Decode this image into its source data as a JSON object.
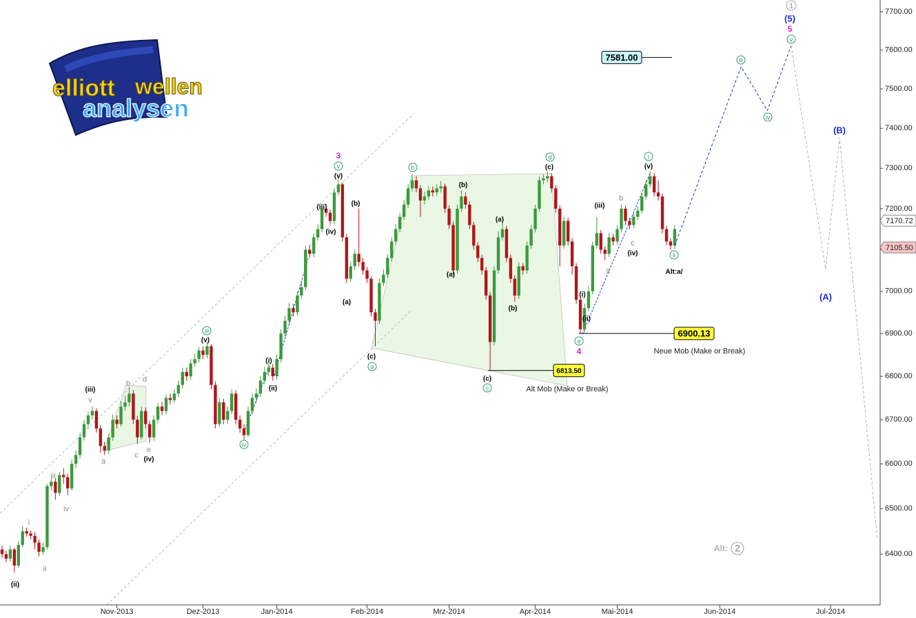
{
  "logo": {
    "line1": "elliott",
    "line2": "wellen",
    "line3": "analysen"
  },
  "chart_data": {
    "type": "candlestick",
    "log_scale": true,
    "grid": false,
    "up_color": "#3c9a3c",
    "down_color": "#b0161a",
    "xlim": [
      -0.5,
      214.1
    ],
    "ylim": [
      6290,
      7731
    ],
    "xticks": [
      {
        "value": 28,
        "label": "Nov-2013"
      },
      {
        "value": 49,
        "label": "Dez-2013"
      },
      {
        "value": 67,
        "label": "Jan-2014"
      },
      {
        "value": 89,
        "label": "Feb-2014"
      },
      {
        "value": 109,
        "label": "Mrz-2014"
      },
      {
        "value": 130,
        "label": "Apr-2014"
      },
      {
        "value": 150,
        "label": "Mai-2014"
      },
      {
        "value": 175,
        "label": "Jun-2014"
      },
      {
        "value": 202,
        "label": "Jul-2014"
      }
    ],
    "yticks": [
      {
        "value": 6400,
        "label": "6400.00"
      },
      {
        "value": 6500,
        "label": "6500.00"
      },
      {
        "value": 6600,
        "label": "6600.00"
      },
      {
        "value": 6700,
        "label": "6700.00"
      },
      {
        "value": 6800,
        "label": "6800.00"
      },
      {
        "value": 6900,
        "label": "6900.00"
      },
      {
        "value": 7000,
        "label": "7000.00"
      },
      {
        "value": 7100,
        "label": "7100.00"
      },
      {
        "value": 7200,
        "label": "7200.00"
      },
      {
        "value": 7300,
        "label": "7300.00"
      },
      {
        "value": 7400,
        "label": "7400.00"
      },
      {
        "value": 7500,
        "label": "7500.00"
      },
      {
        "value": 7600,
        "label": "7600.00"
      },
      {
        "value": 7700,
        "label": "7700.00"
      }
    ],
    "x": [
      0,
      1,
      2,
      3,
      4,
      5,
      6,
      7,
      8,
      9,
      10,
      11,
      12,
      13,
      14,
      15,
      16,
      17,
      18,
      19,
      20,
      21,
      22,
      23,
      24,
      25,
      26,
      27,
      28,
      29,
      30,
      31,
      32,
      33,
      34,
      35,
      36,
      37,
      38,
      39,
      40,
      41,
      42,
      43,
      44,
      45,
      46,
      47,
      48,
      49,
      50,
      51,
      52,
      53,
      54,
      55,
      56,
      57,
      58,
      59,
      60,
      61,
      62,
      63,
      64,
      65,
      66,
      67,
      68,
      69,
      70,
      71,
      72,
      73,
      74,
      75,
      76,
      77,
      78,
      79,
      80,
      81,
      82,
      83,
      84,
      85,
      86,
      87,
      88,
      89,
      90,
      91,
      92,
      93,
      94,
      95,
      96,
      97,
      98,
      99,
      100,
      101,
      102,
      103,
      104,
      105,
      106,
      107,
      108,
      109,
      110,
      111,
      112,
      113,
      114,
      115,
      116,
      117,
      118,
      119,
      120,
      121,
      122,
      123,
      124,
      125,
      126,
      127,
      128,
      129,
      130,
      131,
      132,
      133,
      134,
      135,
      136,
      137,
      138,
      139,
      140,
      141,
      142,
      143,
      144,
      145,
      146,
      147,
      148,
      149,
      150,
      151,
      152,
      153,
      154,
      155,
      156,
      157,
      158,
      159,
      160,
      161,
      162,
      163,
      164
    ],
    "ohlc": [
      [
        6410,
        6418,
        6392,
        6400
      ],
      [
        6400,
        6408,
        6382,
        6390
      ],
      [
        6390,
        6418,
        6384,
        6410
      ],
      [
        6410,
        6414,
        6360,
        6375
      ],
      [
        6375,
        6428,
        6370,
        6420
      ],
      [
        6420,
        6462,
        6415,
        6450
      ],
      [
        6450,
        6458,
        6438,
        6445
      ],
      [
        6445,
        6452,
        6432,
        6440
      ],
      [
        6440,
        6448,
        6410,
        6425
      ],
      [
        6425,
        6432,
        6395,
        6405
      ],
      [
        6405,
        6425,
        6398,
        6415
      ],
      [
        6415,
        6555,
        6410,
        6550
      ],
      [
        6550,
        6572,
        6540,
        6560
      ],
      [
        6560,
        6568,
        6520,
        6535
      ],
      [
        6535,
        6582,
        6528,
        6575
      ],
      [
        6575,
        6590,
        6555,
        6570
      ],
      [
        6570,
        6578,
        6530,
        6545
      ],
      [
        6545,
        6610,
        6540,
        6600
      ],
      [
        6600,
        6630,
        6590,
        6620
      ],
      [
        6620,
        6670,
        6612,
        6660
      ],
      [
        6660,
        6700,
        6652,
        6690
      ],
      [
        6690,
        6718,
        6680,
        6710
      ],
      [
        6710,
        6730,
        6700,
        6720
      ],
      [
        6720,
        6726,
        6670,
        6680
      ],
      [
        6680,
        6688,
        6625,
        6640
      ],
      [
        6640,
        6650,
        6620,
        6630
      ],
      [
        6630,
        6668,
        6622,
        6660
      ],
      [
        6660,
        6712,
        6652,
        6700
      ],
      [
        6700,
        6710,
        6680,
        6690
      ],
      [
        6690,
        6742,
        6684,
        6730
      ],
      [
        6730,
        6755,
        6720,
        6740
      ],
      [
        6740,
        6775,
        6730,
        6760
      ],
      [
        6760,
        6768,
        6690,
        6700
      ],
      [
        6700,
        6708,
        6645,
        6660
      ],
      [
        6660,
        6730,
        6655,
        6720
      ],
      [
        6720,
        6728,
        6680,
        6690
      ],
      [
        6690,
        6698,
        6648,
        6660
      ],
      [
        6660,
        6710,
        6652,
        6700
      ],
      [
        6700,
        6738,
        6692,
        6730
      ],
      [
        6730,
        6740,
        6710,
        6720
      ],
      [
        6720,
        6758,
        6712,
        6750
      ],
      [
        6750,
        6760,
        6735,
        6745
      ],
      [
        6745,
        6770,
        6738,
        6760
      ],
      [
        6760,
        6790,
        6752,
        6780
      ],
      [
        6780,
        6820,
        6772,
        6810
      ],
      [
        6810,
        6820,
        6790,
        6800
      ],
      [
        6800,
        6840,
        6792,
        6830
      ],
      [
        6830,
        6852,
        6822,
        6840
      ],
      [
        6840,
        6868,
        6832,
        6860
      ],
      [
        6860,
        6870,
        6840,
        6850
      ],
      [
        6850,
        6880,
        6842,
        6870
      ],
      [
        6870,
        6875,
        6770,
        6780
      ],
      [
        6780,
        6788,
        6680,
        6690
      ],
      [
        6690,
        6750,
        6684,
        6740
      ],
      [
        6740,
        6748,
        6690,
        6700
      ],
      [
        6700,
        6730,
        6690,
        6720
      ],
      [
        6720,
        6770,
        6712,
        6760
      ],
      [
        6760,
        6768,
        6690,
        6700
      ],
      [
        6700,
        6710,
        6670,
        6680
      ],
      [
        6680,
        6690,
        6655,
        6665
      ],
      [
        6665,
        6730,
        6660,
        6720
      ],
      [
        6720,
        6760,
        6712,
        6750
      ],
      [
        6750,
        6772,
        6740,
        6760
      ],
      [
        6760,
        6800,
        6752,
        6790
      ],
      [
        6790,
        6822,
        6782,
        6810
      ],
      [
        6810,
        6832,
        6800,
        6820
      ],
      [
        6820,
        6828,
        6790,
        6800
      ],
      [
        6800,
        6850,
        6792,
        6840
      ],
      [
        6840,
        6910,
        6832,
        6900
      ],
      [
        6900,
        6942,
        6892,
        6930
      ],
      [
        6930,
        6972,
        6922,
        6960
      ],
      [
        6960,
        6970,
        6940,
        6950
      ],
      [
        6950,
        7000,
        6942,
        6990
      ],
      [
        6990,
        7022,
        6982,
        7010
      ],
      [
        7010,
        7110,
        7002,
        7100
      ],
      [
        7100,
        7112,
        7080,
        7090
      ],
      [
        7090,
        7140,
        7082,
        7130
      ],
      [
        7130,
        7162,
        7122,
        7150
      ],
      [
        7150,
        7210,
        7142,
        7200
      ],
      [
        7200,
        7212,
        7180,
        7190
      ],
      [
        7190,
        7198,
        7160,
        7170
      ],
      [
        7170,
        7250,
        7162,
        7240
      ],
      [
        7240,
        7275,
        7232,
        7260
      ],
      [
        7260,
        7265,
        7120,
        7130
      ],
      [
        7130,
        7138,
        7020,
        7030
      ],
      [
        7030,
        7070,
        7022,
        7060
      ],
      [
        7060,
        7100,
        7050,
        7090
      ],
      [
        7090,
        7200,
        7060,
        7070
      ],
      [
        7070,
        7080,
        7040,
        7050
      ],
      [
        7050,
        7058,
        7020,
        7030
      ],
      [
        7030,
        7036,
        6940,
        6950
      ],
      [
        6950,
        6958,
        6870,
        6930
      ],
      [
        6930,
        7030,
        6922,
        7020
      ],
      [
        7020,
        7052,
        7012,
        7040
      ],
      [
        7040,
        7090,
        7032,
        7080
      ],
      [
        7080,
        7130,
        7072,
        7120
      ],
      [
        7120,
        7162,
        7112,
        7150
      ],
      [
        7150,
        7190,
        7142,
        7180
      ],
      [
        7180,
        7222,
        7172,
        7210
      ],
      [
        7210,
        7260,
        7202,
        7250
      ],
      [
        7250,
        7285,
        7242,
        7270
      ],
      [
        7270,
        7280,
        7240,
        7250
      ],
      [
        7250,
        7258,
        7180,
        7220
      ],
      [
        7220,
        7242,
        7210,
        7230
      ],
      [
        7230,
        7255,
        7222,
        7245
      ],
      [
        7245,
        7255,
        7230,
        7240
      ],
      [
        7240,
        7260,
        7232,
        7250
      ],
      [
        7250,
        7268,
        7240,
        7255
      ],
      [
        7255,
        7262,
        7190,
        7200
      ],
      [
        7200,
        7208,
        7150,
        7160
      ],
      [
        7160,
        7168,
        7040,
        7050
      ],
      [
        7050,
        7210,
        7042,
        7200
      ],
      [
        7200,
        7245,
        7192,
        7230
      ],
      [
        7230,
        7240,
        7200,
        7210
      ],
      [
        7210,
        7218,
        7150,
        7160
      ],
      [
        7160,
        7168,
        7100,
        7110
      ],
      [
        7110,
        7118,
        7070,
        7080
      ],
      [
        7080,
        7088,
        7040,
        7050
      ],
      [
        7050,
        7058,
        6980,
        6990
      ],
      [
        6990,
        6998,
        6813.5,
        6880
      ],
      [
        6880,
        7060,
        6872,
        7050
      ],
      [
        7050,
        7145,
        7042,
        7130
      ],
      [
        7130,
        7165,
        7122,
        7150
      ],
      [
        7150,
        7158,
        7070,
        7080
      ],
      [
        7080,
        7088,
        7020,
        7030
      ],
      [
        7030,
        7038,
        6975,
        6990
      ],
      [
        6990,
        7070,
        6982,
        7060
      ],
      [
        7060,
        7068,
        7040,
        7050
      ],
      [
        7050,
        7120,
        7042,
        7110
      ],
      [
        7110,
        7160,
        7102,
        7150
      ],
      [
        7150,
        7210,
        7142,
        7200
      ],
      [
        7200,
        7280,
        7192,
        7270
      ],
      [
        7270,
        7285,
        7260,
        7275
      ],
      [
        7275,
        7292,
        7265,
        7280
      ],
      [
        7280,
        7288,
        7240,
        7250
      ],
      [
        7250,
        7258,
        7190,
        7200
      ],
      [
        7200,
        7208,
        7060,
        7110
      ],
      [
        7110,
        7180,
        7102,
        7170
      ],
      [
        7170,
        7178,
        7110,
        7120
      ],
      [
        7120,
        7128,
        7040,
        7060
      ],
      [
        7060,
        7068,
        6970,
        6980
      ],
      [
        6980,
        6990,
        6900.13,
        6910
      ],
      [
        6910,
        6970,
        6902,
        6960
      ],
      [
        6960,
        7012,
        6952,
        7000
      ],
      [
        7000,
        7120,
        6992,
        7110
      ],
      [
        7110,
        7180,
        7102,
        7140
      ],
      [
        7140,
        7148,
        7090,
        7100
      ],
      [
        7100,
        7108,
        7075,
        7090
      ],
      [
        7090,
        7140,
        7082,
        7130
      ],
      [
        7130,
        7138,
        7110,
        7120
      ],
      [
        7120,
        7160,
        7112,
        7150
      ],
      [
        7150,
        7210,
        7142,
        7200
      ],
      [
        7200,
        7208,
        7160,
        7170
      ],
      [
        7170,
        7178,
        7150,
        7160
      ],
      [
        7160,
        7190,
        7152,
        7180
      ],
      [
        7180,
        7205,
        7172,
        7195
      ],
      [
        7195,
        7240,
        7188,
        7230
      ],
      [
        7230,
        7270,
        7222,
        7260
      ],
      [
        7260,
        7292,
        7252,
        7280
      ],
      [
        7280,
        7288,
        7230,
        7240
      ],
      [
        7240,
        7270,
        7220,
        7230
      ],
      [
        7230,
        7238,
        7140,
        7150
      ],
      [
        7150,
        7158,
        7110,
        7120
      ],
      [
        7120,
        7128,
        7100,
        7110
      ],
      [
        7110,
        7160,
        7102,
        7150
      ]
    ],
    "projection": {
      "color": "#1a2fd0",
      "x": [
        164,
        180.2,
        186.6,
        192.4
      ],
      "y": [
        7110,
        7557,
        7445,
        7612
      ]
    },
    "alternate": {
      "color": "#b0b0b0",
      "x": [
        192.4,
        200.8,
        204.2,
        213.4
      ],
      "y": [
        7612,
        7053,
        7376,
        6432
      ]
    },
    "levels": [
      {
        "value": 7581,
        "label": "7581.00",
        "color": "#c8f4fa"
      },
      {
        "value": 6900.13,
        "label": "6900.13",
        "color": "#ffff3c"
      },
      {
        "value": 6813.5,
        "label": "6813.50",
        "color": "#ffff3c"
      }
    ],
    "price_tags": [
      {
        "value": 7170.72,
        "label": "7170.72",
        "color": "#ffffff"
      },
      {
        "value": 7105.5,
        "label": "7105.50",
        "color": "#f6c4c4"
      }
    ],
    "wave_labels": [
      "(ii)",
      "i",
      "ii",
      "iii",
      "iv",
      "(iii)",
      "v",
      "a",
      "b",
      "c",
      "d",
      "e",
      "(iv)",
      "iii",
      "(v)",
      "iv",
      "(i)",
      "(ii)",
      "(iii)",
      "(iv)",
      "3",
      "v",
      "(v)",
      "(b)",
      "(a)",
      "(c)",
      "a",
      "b",
      "(b)",
      "(a)",
      "(a)",
      "(b)",
      "(c)",
      "c",
      "d",
      "(c)",
      "(i)",
      "(ii)",
      "e",
      "4",
      "(iii)",
      "b",
      "a",
      "c",
      "(iv)",
      "i",
      "(v)",
      "ii",
      "Alt:a/",
      "iii",
      "iv",
      "v",
      "5",
      "(5)",
      "1",
      "(B)",
      "(A)",
      "Alt:",
      "2",
      "Neue Mob (Make or Break)",
      "Alt Mob (Make or Break)"
    ]
  }
}
